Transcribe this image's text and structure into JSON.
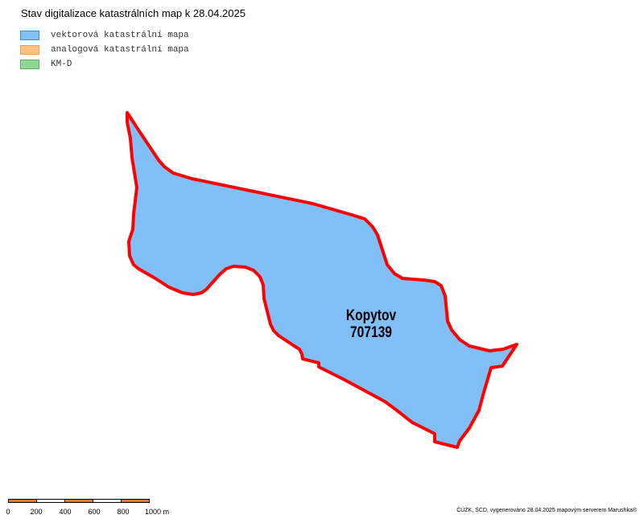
{
  "title": "Stav digitalizace katastrálních map k 28.04.2025",
  "legend": [
    {
      "label": "vektorová katastrální mapa",
      "fill": "#80bff8",
      "stroke": "#3a8ee0"
    },
    {
      "label": "analogová katastrální mapa",
      "fill": "#ffc080",
      "stroke": "#f0a050"
    },
    {
      "label": "KM-D",
      "fill": "#90d890",
      "stroke": "#60b060"
    }
  ],
  "parcel": {
    "name": "Kopytov",
    "code": "707139",
    "fill": "#80bff8",
    "stroke": "#ff0000"
  },
  "scale": {
    "labels": [
      "0",
      "200",
      "400",
      "600",
      "800",
      "1000 m"
    ],
    "segment_colors": [
      "#e07830",
      "#ffffff",
      "#e07830",
      "#ffffff",
      "#e07830"
    ]
  },
  "credit": "ČÚZK, SCD, vygenerováno 28.04.2025 mapovým serverem Marushka®"
}
